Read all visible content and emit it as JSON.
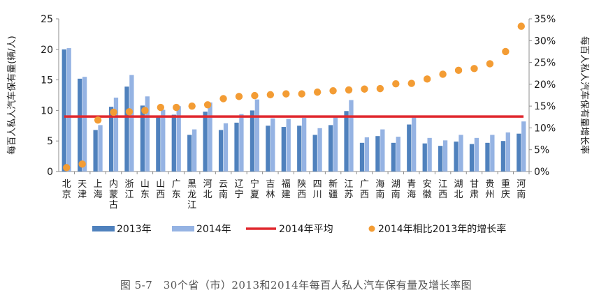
{
  "caption": "图 5-7　30个省（市）2013和2014年每百人私人汽车保有量及增长率图",
  "chart_data": {
    "type": "bar",
    "title": "",
    "caption": "图 5-7　30个省（市）2013和2014年每百人私人汽车保有量及增长率图",
    "categories": [
      "北京",
      "天津",
      "上海",
      "内蒙古",
      "浙江",
      "山东",
      "山西",
      "广东",
      "黑龙江",
      "河北",
      "云南",
      "辽宁",
      "宁夏",
      "吉林",
      "福建",
      "陕西",
      "四川",
      "新疆",
      "江苏",
      "广西",
      "海南",
      "湖南",
      "青海",
      "安徽",
      "江西",
      "湖北",
      "甘肃",
      "贵州",
      "重庆",
      "河南"
    ],
    "ylabel_left": "每百人私人汽车保有量(辆/人)",
    "ylabel_right": "每百人私人汽车保有量增长率",
    "ylim_left": [
      0,
      25
    ],
    "yticks_left": [
      "0",
      "5",
      "10",
      "15",
      "20",
      "25"
    ],
    "ylim_right": [
      0,
      35
    ],
    "yticks_right": [
      "0%",
      "5%",
      "10%",
      "15%",
      "20%",
      "25%",
      "30%",
      "35%"
    ],
    "legend_position": "bottom",
    "series": [
      {
        "name": "2013年",
        "type": "bar",
        "color": "#4f81bd",
        "values": [
          20.0,
          15.2,
          6.8,
          10.6,
          13.9,
          10.8,
          9.0,
          9.3,
          6.0,
          9.8,
          6.8,
          8.0,
          10.0,
          7.5,
          7.3,
          7.5,
          6.0,
          7.6,
          9.9,
          4.7,
          5.8,
          4.7,
          7.7,
          4.6,
          4.2,
          4.9,
          4.5,
          4.7,
          5.0,
          6.2
        ]
      },
      {
        "name": "2014年",
        "type": "bar",
        "color": "#95b3e3",
        "values": [
          20.2,
          15.5,
          7.6,
          12.1,
          15.8,
          12.3,
          10.1,
          10.7,
          6.9,
          11.3,
          7.9,
          9.4,
          11.8,
          8.7,
          8.6,
          8.8,
          7.1,
          9.0,
          11.7,
          5.6,
          6.9,
          5.7,
          9.0,
          5.5,
          5.1,
          6.0,
          5.5,
          6.0,
          6.4,
          8.2
        ]
      },
      {
        "name": "2014年平均",
        "type": "line",
        "color": "#e0282e",
        "value": 9.0
      },
      {
        "name": "2014年相比2013年的增长率",
        "type": "scatter",
        "axis": "right",
        "color": "#f39c34",
        "values": [
          0.9,
          1.7,
          11.8,
          13.6,
          13.7,
          14.0,
          14.7,
          14.7,
          15.0,
          15.3,
          16.7,
          17.2,
          17.4,
          17.6,
          17.8,
          17.8,
          18.2,
          18.5,
          18.7,
          18.9,
          19.0,
          20.1,
          20.2,
          21.2,
          22.3,
          23.2,
          23.6,
          24.7,
          27.5,
          33.3
        ]
      }
    ]
  }
}
